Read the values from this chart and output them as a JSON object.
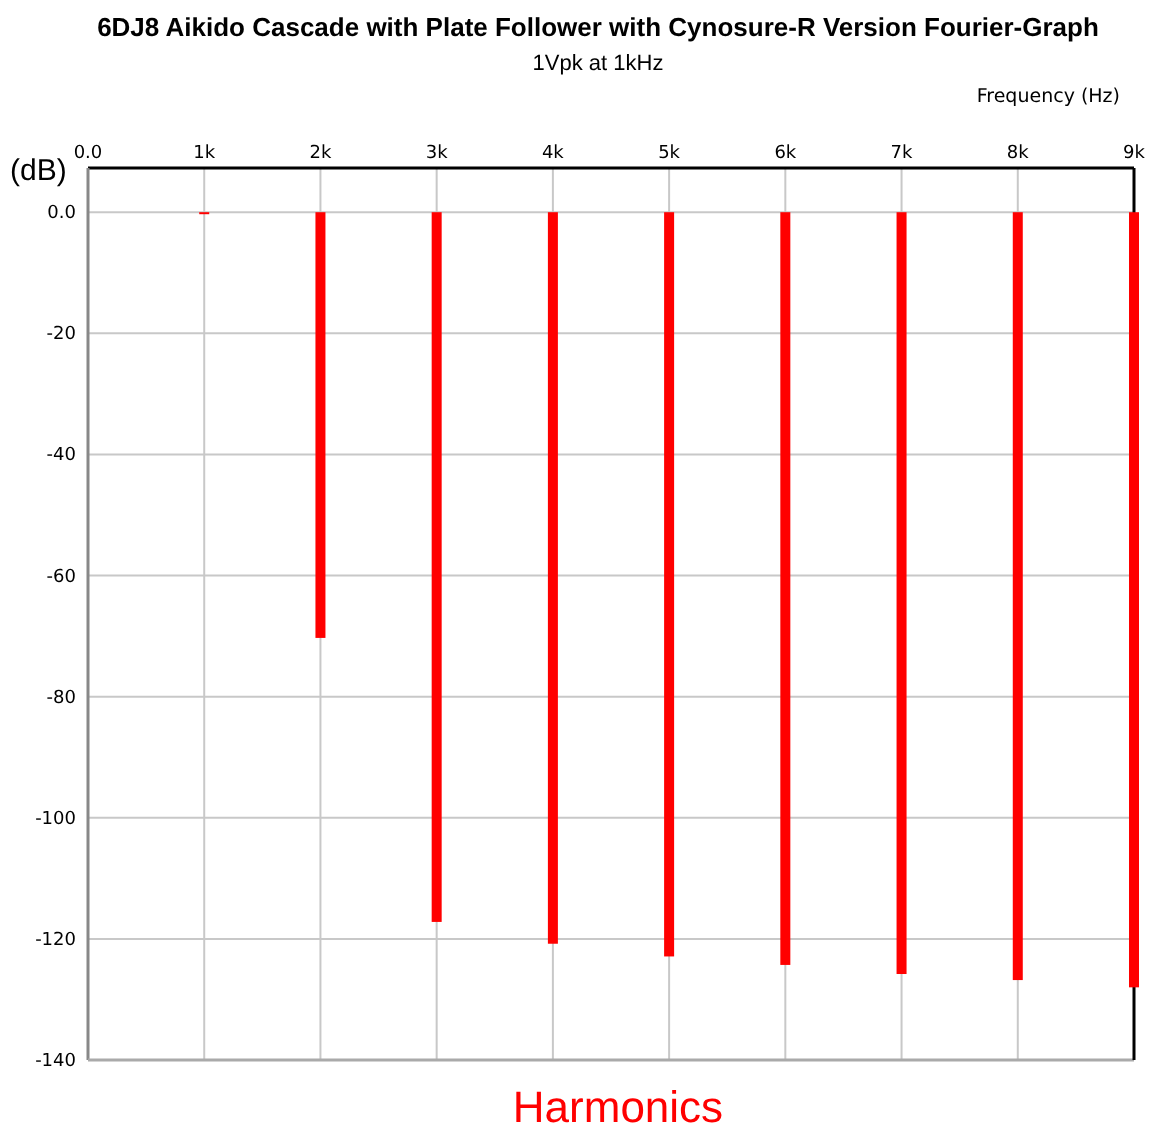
{
  "chart_data": {
    "type": "bar",
    "title": "6DJ8 Aikido Cascade with Plate Follower with Cynosure-R Version Fourier-Graph",
    "subtitle": "1Vpk at 1kHz",
    "xlabel": "Frequency   (Hz)",
    "ylabel": "(dB)",
    "x": [
      1000,
      2000,
      3000,
      4000,
      5000,
      6000,
      7000,
      8000,
      9000
    ],
    "series": [
      {
        "color": "#ff0000",
        "values": [
          0,
          -70.3,
          -117.2,
          -120.8,
          -122.9,
          -124.3,
          -125.8,
          -126.8,
          -128
        ]
      }
    ],
    "xlim": [
      0,
      9000
    ],
    "xticks": [
      {
        "value": 0,
        "label": "0.0"
      },
      {
        "value": 1000,
        "label": "1k"
      },
      {
        "value": 2000,
        "label": "2k"
      },
      {
        "value": 3000,
        "label": "3k"
      },
      {
        "value": 4000,
        "label": "4k"
      },
      {
        "value": 5000,
        "label": "5k"
      },
      {
        "value": 6000,
        "label": "6k"
      },
      {
        "value": 7000,
        "label": "7k"
      },
      {
        "value": 8000,
        "label": "8k"
      },
      {
        "value": 9000,
        "label": "9k"
      }
    ],
    "ylim": [
      -140,
      7.3
    ],
    "yticks": [
      {
        "value": 0,
        "label": "0.0"
      },
      -20,
      -40,
      -60,
      -80,
      -100,
      -120,
      -140
    ],
    "grid": true,
    "annotations": [
      "Harmonics"
    ]
  }
}
